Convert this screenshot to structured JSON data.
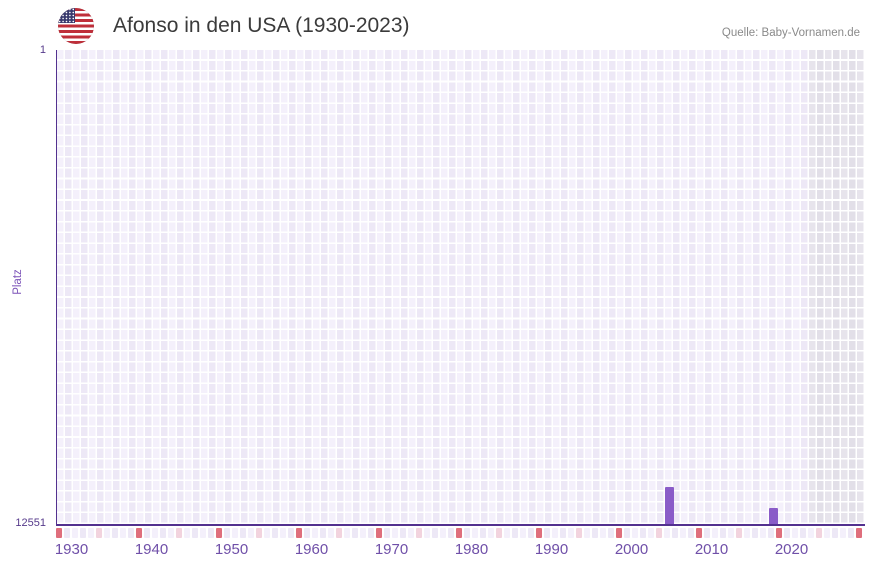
{
  "header": {
    "title": "Afonso in den USA (1930-2023)",
    "source": "Quelle: Baby-Vornamen.de",
    "flag_icon": "us-flag-icon"
  },
  "chart_data": {
    "type": "bar",
    "title": "Afonso in den USA (1930-2023)",
    "ylabel": "Platz",
    "y_axis": {
      "top_label": "1",
      "bottom_label": "12551",
      "min": 1,
      "max": 12551,
      "inverted": true
    },
    "x_axis": {
      "grid_start_year": 1930,
      "grid_end_year": 2030,
      "data_start_year": 1930,
      "data_end_year": 2023,
      "future_start_year": 2024,
      "tick_years": [
        1930,
        1940,
        1950,
        1960,
        1970,
        1980,
        1990,
        2000,
        2010,
        2020
      ]
    },
    "bars": [
      {
        "year": 2005,
        "rank": 11570
      },
      {
        "year": 2018,
        "rank": 12130
      }
    ],
    "timeline_markers": {
      "red_years": [
        1930,
        1940,
        1950,
        1960,
        1970,
        1980,
        1990,
        2000,
        2010,
        2020,
        2030
      ],
      "pink_years": [
        1935,
        1945,
        1955,
        1965,
        1975,
        1985,
        1995,
        2005,
        2015,
        2025
      ]
    },
    "colors": {
      "bar": "#8a5cc8",
      "axis_line": "#53318f",
      "decade_marker": "#df6e7c",
      "half_decade_marker": "#f2d3de",
      "tick_label": "#6f4fa8",
      "grid_cell": "#ede8f6",
      "future_cell": "#e5e2ea"
    },
    "legend_position": "none",
    "grid": true
  }
}
